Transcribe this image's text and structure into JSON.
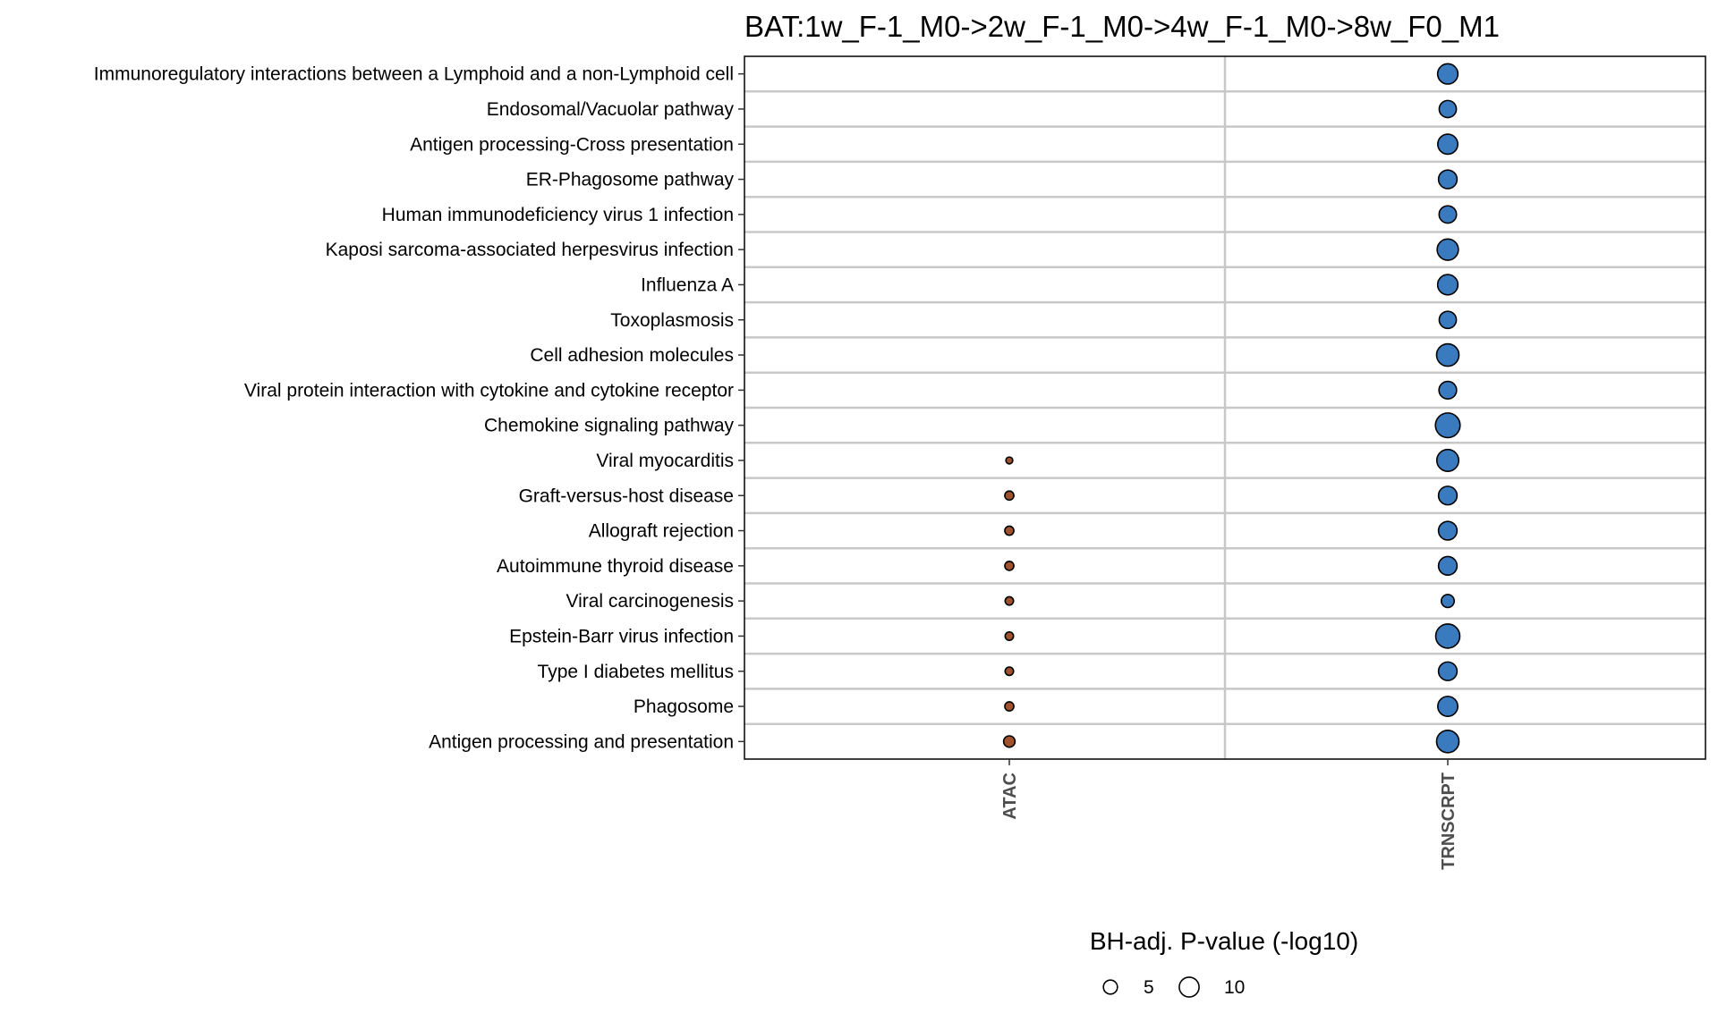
{
  "chart_data": {
    "type": "scatter",
    "title": "BAT:1w_F-1_M0->2w_F-1_M0->4w_F-1_M0->8w_F0_M1",
    "x_categories": [
      "ATAC",
      "TRNSCRPT"
    ],
    "y_categories": [
      "Immunoregulatory interactions between a Lymphoid and a non-Lymphoid cell",
      "Endosomal/Vacuolar pathway",
      "Antigen processing-Cross presentation",
      "ER-Phagosome pathway",
      "Human immunodeficiency virus 1 infection",
      "Kaposi sarcoma-associated herpesvirus infection",
      "Influenza A",
      "Toxoplasmosis",
      "Cell adhesion molecules",
      "Viral protein interaction with cytokine and cytokine receptor",
      "Chemokine signaling pathway",
      "Viral myocarditis",
      "Graft-versus-host disease",
      "Allograft rejection",
      "Autoimmune thyroid disease",
      "Viral carcinogenesis",
      "Epstein-Barr virus infection",
      "Type I diabetes mellitus",
      "Phagosome",
      "Antigen processing and presentation"
    ],
    "size_legend": {
      "title": "BH-adj. P-value (-log10)",
      "values": [
        5,
        10
      ],
      "labels": [
        "5",
        "10"
      ]
    },
    "colors": {
      "ATAC": "#a0522d",
      "TRNSCRPT": "#3a7bbf"
    },
    "grid": true,
    "legend_position": "bottom",
    "series": [
      {
        "x": "ATAC",
        "points": [
          {
            "y": "Viral myocarditis",
            "value": 1.2
          },
          {
            "y": "Graft-versus-host disease",
            "value": 2.1
          },
          {
            "y": "Allograft rejection",
            "value": 2.1
          },
          {
            "y": "Autoimmune thyroid disease",
            "value": 2.1
          },
          {
            "y": "Viral carcinogenesis",
            "value": 1.8
          },
          {
            "y": "Epstein-Barr virus infection",
            "value": 1.8
          },
          {
            "y": "Type I diabetes mellitus",
            "value": 1.8
          },
          {
            "y": "Phagosome",
            "value": 2.1
          },
          {
            "y": "Antigen processing and presentation",
            "value": 3.3
          }
        ]
      },
      {
        "x": "TRNSCRPT",
        "points": [
          {
            "y": "Immunoregulatory interactions between a Lymphoid and a non-Lymphoid cell",
            "value": 10.5
          },
          {
            "y": "Endosomal/Vacuolar pathway",
            "value": 7.5
          },
          {
            "y": "Antigen processing-Cross presentation",
            "value": 10.2
          },
          {
            "y": "ER-Phagosome pathway",
            "value": 8.8
          },
          {
            "y": "Human immunodeficiency virus 1 infection",
            "value": 7.7
          },
          {
            "y": "Kaposi sarcoma-associated herpesvirus infection",
            "value": 11.5
          },
          {
            "y": "Influenza A",
            "value": 10.5
          },
          {
            "y": "Toxoplasmosis",
            "value": 7.5
          },
          {
            "y": "Cell adhesion molecules",
            "value": 12.8
          },
          {
            "y": "Viral protein interaction with cytokine and cytokine receptor",
            "value": 7.9
          },
          {
            "y": "Chemokine signaling pathway",
            "value": 15.5
          },
          {
            "y": "Viral myocarditis",
            "value": 12.2
          },
          {
            "y": "Graft-versus-host disease",
            "value": 8.8
          },
          {
            "y": "Allograft rejection",
            "value": 8.8
          },
          {
            "y": "Autoimmune thyroid disease",
            "value": 8.8
          },
          {
            "y": "Viral carcinogenesis",
            "value": 4.3
          },
          {
            "y": "Epstein-Barr virus infection",
            "value": 14.8
          },
          {
            "y": "Type I diabetes mellitus",
            "value": 8.8
          },
          {
            "y": "Phagosome",
            "value": 10.2
          },
          {
            "y": "Antigen processing and presentation",
            "value": 12.8
          }
        ]
      }
    ]
  }
}
